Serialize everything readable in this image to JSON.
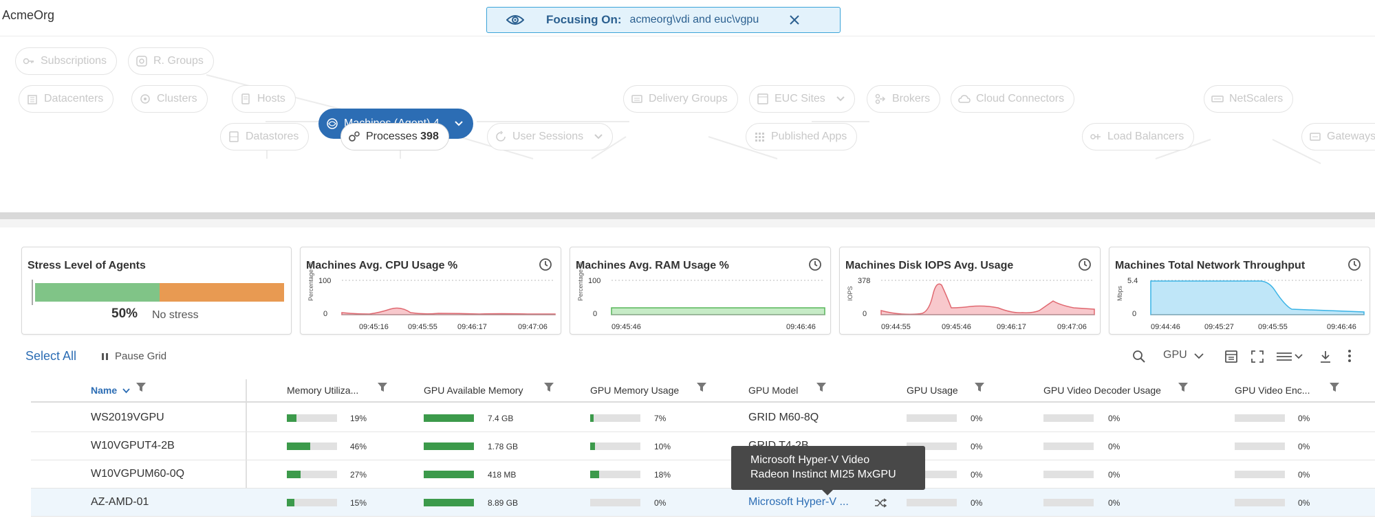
{
  "org": "AcmeOrg",
  "focus": {
    "label": "Focusing On:",
    "value": "acmeorg\\vdi and euc\\vgpu"
  },
  "topology": {
    "subscriptions": "Subscriptions",
    "rgroups": "R. Groups",
    "datacenters": "Datacenters",
    "clusters": "Clusters",
    "hosts": "Hosts",
    "machines_label": "Machines (Agent)",
    "machines_count": "4",
    "delivery_groups": "Delivery Groups",
    "euc_sites": "EUC Sites",
    "brokers": "Brokers",
    "cloud_connectors": "Cloud Connectors",
    "netscalers": "NetScalers",
    "datastores": "Datastores",
    "processes_label": "Processes",
    "processes_count": "398",
    "user_sessions": "User Sessions",
    "published_apps": "Published Apps",
    "load_balancers": "Load Balancers",
    "gateways": "Gateways"
  },
  "cards": {
    "stress": {
      "title": "Stress Level of Agents",
      "pct": "50%",
      "status": "No stress",
      "value": 0.5
    },
    "cpu": {
      "title": "Machines Avg. CPU Usage %",
      "yaxis": "Percentage %",
      "ymax": "100",
      "ymin": "0",
      "ticks": [
        "09:45:16",
        "09:45:55",
        "09:46:17",
        "09:47:06"
      ]
    },
    "ram": {
      "title": "Machines Avg. RAM Usage %",
      "yaxis": "Percentage %",
      "ymax": "100",
      "ymin": "0",
      "ticks": [
        "09:45:46",
        "09:46:46"
      ]
    },
    "iops": {
      "title": "Machines Disk IOPS Avg. Usage",
      "yaxis": "IOPS",
      "ymax": "378",
      "ymin": "0",
      "ticks": [
        "09:44:55",
        "09:45:46",
        "09:46:17",
        "09:47:06"
      ]
    },
    "net": {
      "title": "Machines Total Network Throughput",
      "yaxis": "Mbps",
      "ymax": "5.4",
      "ymin": "0",
      "ticks": [
        "09:44:46",
        "09:45:27",
        "09:45:55",
        "09:46:46"
      ]
    }
  },
  "toolbar": {
    "select_all": "Select All",
    "pause": "Pause Grid",
    "gpu": "GPU"
  },
  "columns": {
    "name": "Name",
    "mem": "Memory Utiliza...",
    "gpu_avail": "GPU Available Memory",
    "gpu_mem": "GPU Memory Usage",
    "gpu_model": "GPU Model",
    "gpu_usage": "GPU Usage",
    "decoder": "GPU Video Decoder Usage",
    "encoder": "GPU Video Enc..."
  },
  "rows": [
    {
      "name": "WS2019VGPU",
      "mem": "19%",
      "mem_v": 0.19,
      "avail": "7.4 GB",
      "gmem": "7%",
      "gmem_v": 0.07,
      "model": "GRID M60-8Q",
      "gusage": "0%",
      "dec": "0%",
      "enc": "0%"
    },
    {
      "name": "W10VGPUT4-2B",
      "mem": "46%",
      "mem_v": 0.46,
      "avail": "1.78 GB",
      "gmem": "10%",
      "gmem_v": 0.1,
      "model": "GRID T4-2B",
      "gusage": "0%",
      "dec": "0%",
      "enc": "0%"
    },
    {
      "name": "W10VGPUM60-0Q",
      "mem": "27%",
      "mem_v": 0.27,
      "avail": "418 MB",
      "gmem": "18%",
      "gmem_v": 0.18,
      "model": "",
      "gusage": "0%",
      "dec": "0%",
      "enc": "0%"
    },
    {
      "name": "AZ-AMD-01",
      "mem": "15%",
      "mem_v": 0.15,
      "avail": "8.89 GB",
      "gmem": "0%",
      "gmem_v": 0.0,
      "model": "Microsoft Hyper-V ...",
      "gusage": "0%",
      "dec": "0%",
      "enc": "0%"
    }
  ],
  "tooltip": {
    "line1": "Microsoft Hyper-V Video",
    "line2": "Radeon Instinct MI25 MxGPU"
  }
}
